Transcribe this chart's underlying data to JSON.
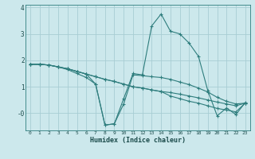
{
  "title": "",
  "xlabel": "Humidex (Indice chaleur)",
  "bg_color": "#cce8ec",
  "grid_color": "#a8cdd4",
  "line_color": "#2e7d7d",
  "xlim": [
    -0.5,
    23.5
  ],
  "ylim": [
    -0.65,
    4.1
  ],
  "yticks": [
    0,
    1,
    2,
    3,
    4
  ],
  "ytick_labels": [
    "-0",
    "1",
    "2",
    "3",
    "4"
  ],
  "xticks": [
    0,
    1,
    2,
    3,
    4,
    5,
    6,
    7,
    8,
    9,
    10,
    11,
    12,
    13,
    14,
    15,
    16,
    17,
    18,
    19,
    20,
    21,
    22,
    23
  ],
  "line1": [
    [
      0,
      1.85
    ],
    [
      1,
      1.85
    ],
    [
      2,
      1.82
    ],
    [
      3,
      1.75
    ],
    [
      4,
      1.65
    ],
    [
      5,
      1.5
    ],
    [
      6,
      1.35
    ],
    [
      7,
      1.1
    ],
    [
      8,
      -0.45
    ],
    [
      9,
      -0.4
    ],
    [
      10,
      0.55
    ],
    [
      11,
      1.5
    ],
    [
      12,
      1.45
    ],
    [
      13,
      3.3
    ],
    [
      14,
      3.75
    ],
    [
      15,
      3.1
    ],
    [
      16,
      3.0
    ],
    [
      17,
      2.65
    ],
    [
      18,
      2.15
    ],
    [
      19,
      0.85
    ],
    [
      20,
      -0.1
    ],
    [
      21,
      0.2
    ],
    [
      22,
      -0.05
    ],
    [
      23,
      0.4
    ]
  ],
  "line2": [
    [
      0,
      1.85
    ],
    [
      1,
      1.85
    ],
    [
      2,
      1.82
    ],
    [
      3,
      1.75
    ],
    [
      4,
      1.68
    ],
    [
      5,
      1.58
    ],
    [
      6,
      1.48
    ],
    [
      7,
      1.38
    ],
    [
      8,
      1.28
    ],
    [
      9,
      1.2
    ],
    [
      10,
      1.1
    ],
    [
      11,
      1.0
    ],
    [
      12,
      0.95
    ],
    [
      13,
      0.88
    ],
    [
      14,
      0.82
    ],
    [
      15,
      0.78
    ],
    [
      16,
      0.72
    ],
    [
      17,
      0.65
    ],
    [
      18,
      0.58
    ],
    [
      19,
      0.5
    ],
    [
      20,
      0.42
    ],
    [
      21,
      0.35
    ],
    [
      22,
      0.28
    ],
    [
      23,
      0.38
    ]
  ],
  "line3": [
    [
      0,
      1.85
    ],
    [
      1,
      1.85
    ],
    [
      2,
      1.82
    ],
    [
      3,
      1.75
    ],
    [
      4,
      1.68
    ],
    [
      5,
      1.58
    ],
    [
      6,
      1.48
    ],
    [
      7,
      1.1
    ],
    [
      8,
      -0.45
    ],
    [
      9,
      -0.4
    ],
    [
      10,
      0.35
    ],
    [
      11,
      1.45
    ],
    [
      12,
      1.42
    ],
    [
      13,
      1.38
    ],
    [
      14,
      1.35
    ],
    [
      15,
      1.28
    ],
    [
      16,
      1.18
    ],
    [
      17,
      1.08
    ],
    [
      18,
      0.95
    ],
    [
      19,
      0.8
    ],
    [
      20,
      0.6
    ],
    [
      21,
      0.45
    ],
    [
      22,
      0.35
    ],
    [
      23,
      0.38
    ]
  ],
  "line4": [
    [
      0,
      1.85
    ],
    [
      1,
      1.85
    ],
    [
      2,
      1.82
    ],
    [
      3,
      1.75
    ],
    [
      4,
      1.68
    ],
    [
      5,
      1.58
    ],
    [
      6,
      1.48
    ],
    [
      7,
      1.38
    ],
    [
      8,
      1.28
    ],
    [
      9,
      1.2
    ],
    [
      10,
      1.1
    ],
    [
      11,
      1.0
    ],
    [
      12,
      0.95
    ],
    [
      13,
      0.88
    ],
    [
      14,
      0.82
    ],
    [
      15,
      0.65
    ],
    [
      16,
      0.55
    ],
    [
      17,
      0.45
    ],
    [
      18,
      0.38
    ],
    [
      19,
      0.28
    ],
    [
      20,
      0.18
    ],
    [
      21,
      0.12
    ],
    [
      22,
      0.05
    ],
    [
      23,
      0.38
    ]
  ]
}
